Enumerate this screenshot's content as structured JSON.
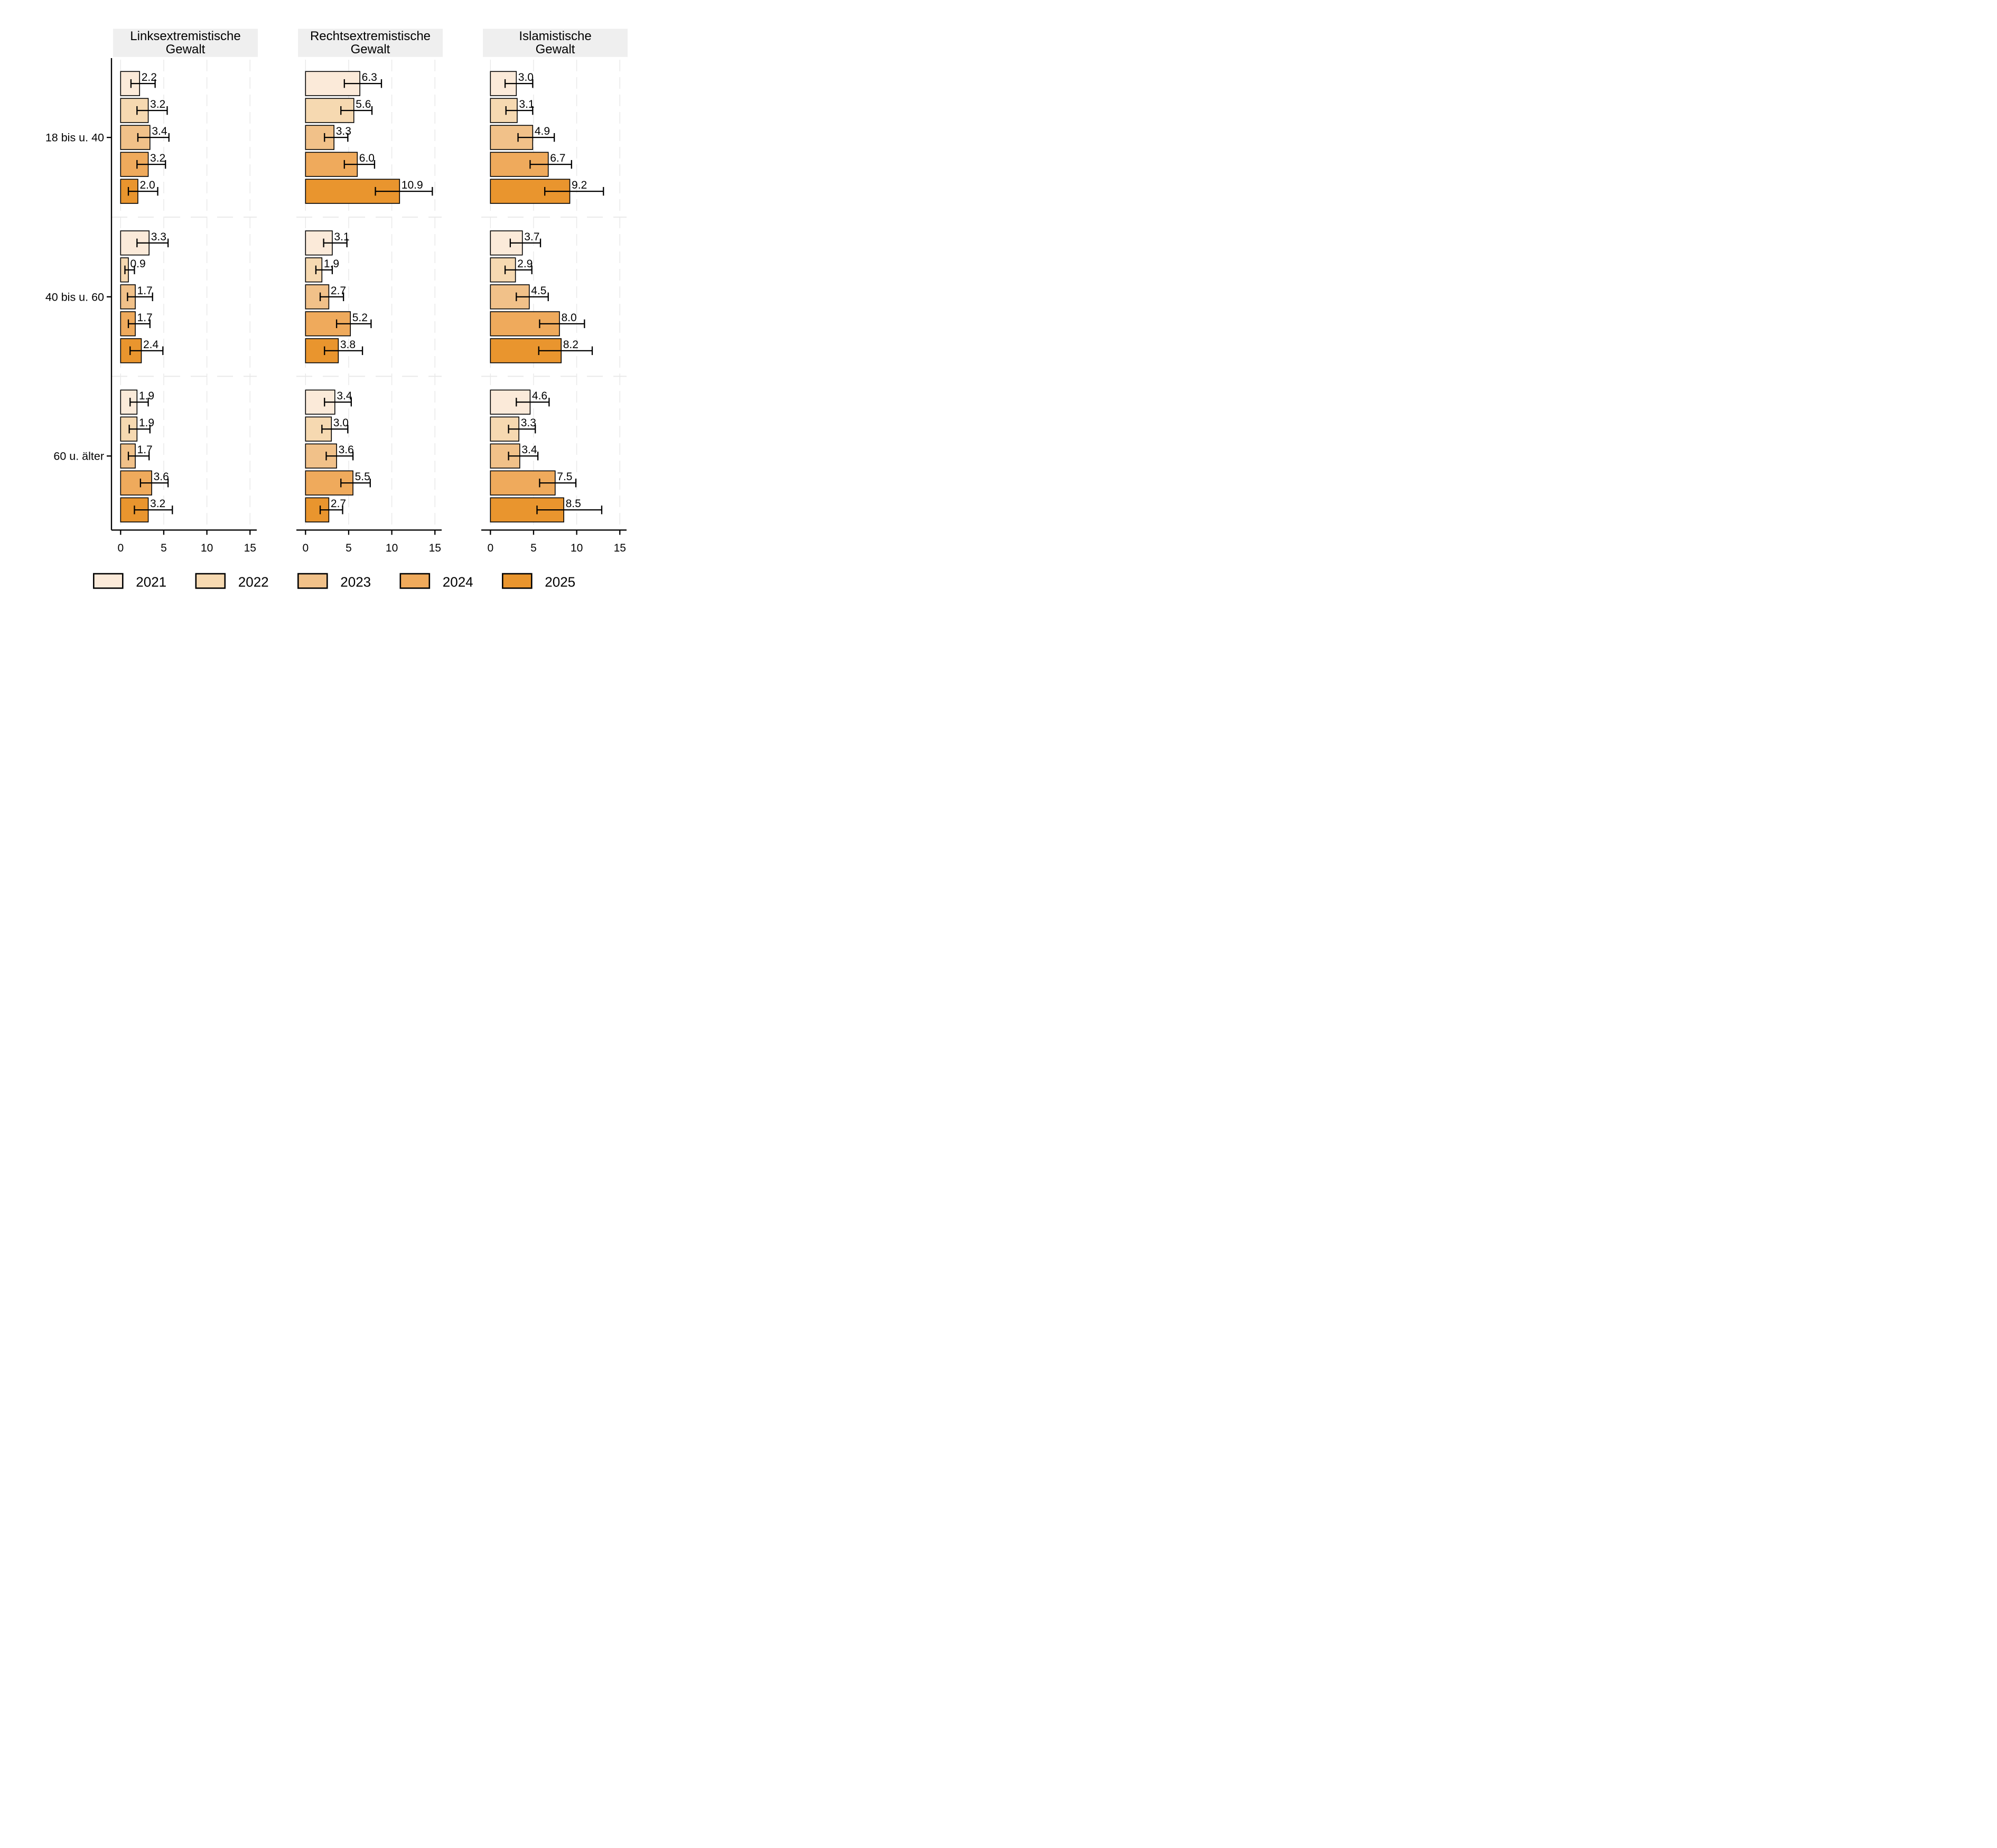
{
  "figure": {
    "background": "#ffffff",
    "panel_header_bg": "#efefef",
    "grid_color": "#e8e8e8",
    "separator_color": "#e8e8e8",
    "axis_color": "#000000",
    "bar_border_color": "#000000",
    "text_color": "#000000"
  },
  "chart_data": {
    "type": "bar",
    "orientation": "horizontal",
    "grid": true,
    "legend_position": "bottom",
    "x_ticks": [
      0,
      5,
      10,
      15
    ],
    "xlim": [
      0,
      15.8
    ],
    "age_groups": [
      "18 bis u. 40",
      "40 bis u. 60",
      "60 u. älter"
    ],
    "series_years": [
      "2021",
      "2022",
      "2023",
      "2024",
      "2025"
    ],
    "series_colors": [
      "#fbead9",
      "#f6d9b1",
      "#f1c189",
      "#efaa5c",
      "#e9952e"
    ],
    "panels": [
      {
        "title_lines": [
          "Linksextremistische",
          "Gewalt"
        ],
        "rows": [
          {
            "group": "18 bis u. 40",
            "bars": [
              {
                "year": "2021",
                "value": 2.2,
                "ci": [
                  1.2,
                  4.0
                ]
              },
              {
                "year": "2022",
                "value": 3.2,
                "ci": [
                  1.9,
                  5.4
                ]
              },
              {
                "year": "2023",
                "value": 3.4,
                "ci": [
                  2.0,
                  5.6
                ]
              },
              {
                "year": "2024",
                "value": 3.2,
                "ci": [
                  1.9,
                  5.2
                ]
              },
              {
                "year": "2025",
                "value": 2.0,
                "ci": [
                  0.9,
                  4.3
                ]
              }
            ]
          },
          {
            "group": "40 bis u. 60",
            "bars": [
              {
                "year": "2021",
                "value": 3.3,
                "ci": [
                  1.9,
                  5.5
                ]
              },
              {
                "year": "2022",
                "value": 0.9,
                "ci": [
                  0.5,
                  1.6
                ]
              },
              {
                "year": "2023",
                "value": 1.7,
                "ci": [
                  0.8,
                  3.7
                ]
              },
              {
                "year": "2024",
                "value": 1.7,
                "ci": [
                  0.9,
                  3.4
                ]
              },
              {
                "year": "2025",
                "value": 2.4,
                "ci": [
                  1.1,
                  4.9
                ]
              }
            ]
          },
          {
            "group": "60 u. älter",
            "bars": [
              {
                "year": "2021",
                "value": 1.9,
                "ci": [
                  1.1,
                  3.2
                ]
              },
              {
                "year": "2022",
                "value": 1.9,
                "ci": [
                  1.0,
                  3.4
                ]
              },
              {
                "year": "2023",
                "value": 1.7,
                "ci": [
                  0.9,
                  3.3
                ]
              },
              {
                "year": "2024",
                "value": 3.6,
                "ci": [
                  2.3,
                  5.5
                ]
              },
              {
                "year": "2025",
                "value": 3.2,
                "ci": [
                  1.6,
                  6.0
                ]
              }
            ]
          }
        ]
      },
      {
        "title_lines": [
          "Rechtsextremistische",
          "Gewalt"
        ],
        "rows": [
          {
            "group": "18 bis u. 40",
            "bars": [
              {
                "year": "2021",
                "value": 6.3,
                "ci": [
                  4.5,
                  8.8
                ]
              },
              {
                "year": "2022",
                "value": 5.6,
                "ci": [
                  4.1,
                  7.7
                ]
              },
              {
                "year": "2023",
                "value": 3.3,
                "ci": [
                  2.2,
                  4.9
                ]
              },
              {
                "year": "2024",
                "value": 6.0,
                "ci": [
                  4.5,
                  8.0
                ]
              },
              {
                "year": "2025",
                "value": 10.9,
                "ci": [
                  8.1,
                  14.7
                ]
              }
            ]
          },
          {
            "group": "40 bis u. 60",
            "bars": [
              {
                "year": "2021",
                "value": 3.1,
                "ci": [
                  2.1,
                  4.8
                ]
              },
              {
                "year": "2022",
                "value": 1.9,
                "ci": [
                  1.2,
                  3.1
                ]
              },
              {
                "year": "2023",
                "value": 2.7,
                "ci": [
                  1.7,
                  4.4
                ]
              },
              {
                "year": "2024",
                "value": 5.2,
                "ci": [
                  3.6,
                  7.6
                ]
              },
              {
                "year": "2025",
                "value": 3.8,
                "ci": [
                  2.2,
                  6.6
                ]
              }
            ]
          },
          {
            "group": "60 u. älter",
            "bars": [
              {
                "year": "2021",
                "value": 3.4,
                "ci": [
                  2.2,
                  5.3
                ]
              },
              {
                "year": "2022",
                "value": 3.0,
                "ci": [
                  1.9,
                  4.9
                ]
              },
              {
                "year": "2023",
                "value": 3.6,
                "ci": [
                  2.4,
                  5.5
                ]
              },
              {
                "year": "2024",
                "value": 5.5,
                "ci": [
                  4.1,
                  7.5
                ]
              },
              {
                "year": "2025",
                "value": 2.7,
                "ci": [
                  1.7,
                  4.3
                ]
              }
            ]
          }
        ]
      },
      {
        "title_lines": [
          "Islamistische",
          "Gewalt"
        ],
        "rows": [
          {
            "group": "18 bis u. 40",
            "bars": [
              {
                "year": "2021",
                "value": 3.0,
                "ci": [
                  1.7,
                  4.9
                ]
              },
              {
                "year": "2022",
                "value": 3.1,
                "ci": [
                  1.8,
                  4.9
                ]
              },
              {
                "year": "2023",
                "value": 4.9,
                "ci": [
                  3.2,
                  7.4
                ]
              },
              {
                "year": "2024",
                "value": 6.7,
                "ci": [
                  4.6,
                  9.4
                ]
              },
              {
                "year": "2025",
                "value": 9.2,
                "ci": [
                  6.3,
                  13.1
                ]
              }
            ]
          },
          {
            "group": "40 bis u. 60",
            "bars": [
              {
                "year": "2021",
                "value": 3.7,
                "ci": [
                  2.3,
                  5.8
                ]
              },
              {
                "year": "2022",
                "value": 2.9,
                "ci": [
                  1.7,
                  4.8
                ]
              },
              {
                "year": "2023",
                "value": 4.5,
                "ci": [
                  3.0,
                  6.7
                ]
              },
              {
                "year": "2024",
                "value": 8.0,
                "ci": [
                  5.7,
                  10.9
                ]
              },
              {
                "year": "2025",
                "value": 8.2,
                "ci": [
                  5.6,
                  11.8
                ]
              }
            ]
          },
          {
            "group": "60 u. älter",
            "bars": [
              {
                "year": "2021",
                "value": 4.6,
                "ci": [
                  3.0,
                  6.8
                ]
              },
              {
                "year": "2022",
                "value": 3.3,
                "ci": [
                  2.1,
                  5.2
                ]
              },
              {
                "year": "2023",
                "value": 3.4,
                "ci": [
                  2.1,
                  5.5
                ]
              },
              {
                "year": "2024",
                "value": 7.5,
                "ci": [
                  5.7,
                  9.9
                ]
              },
              {
                "year": "2025",
                "value": 8.5,
                "ci": [
                  5.4,
                  12.9
                ]
              }
            ]
          }
        ]
      }
    ]
  }
}
